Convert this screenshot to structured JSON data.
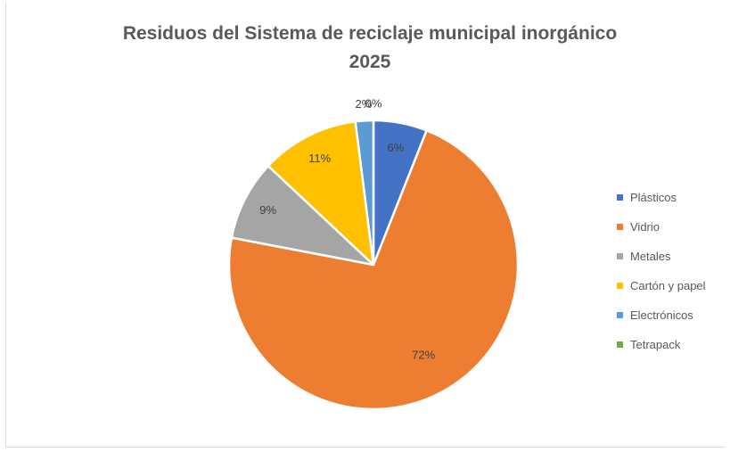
{
  "chart_data": {
    "type": "pie",
    "title_line1": "Residuos del Sistema de reciclaje municipal inorgánico",
    "title_line2": "2025",
    "legend_position": "right",
    "slices": [
      {
        "label": "Plásticos",
        "value": 6,
        "label_text": "6%",
        "color": "#4472C4"
      },
      {
        "label": "Vidrio",
        "value": 72,
        "label_text": "72%",
        "color": "#ED7D31"
      },
      {
        "label": "Metales",
        "value": 9,
        "label_text": "9%",
        "color": "#A5A5A5"
      },
      {
        "label": "Cartón y papel",
        "value": 11,
        "label_text": "11%",
        "color": "#FFC000"
      },
      {
        "label": "Electrónicos",
        "value": 2,
        "label_text": "2%",
        "color": "#5B9BD5"
      },
      {
        "label": "Tetrapack",
        "value": 0,
        "label_text": "0%",
        "color": "#70AD47"
      }
    ]
  }
}
